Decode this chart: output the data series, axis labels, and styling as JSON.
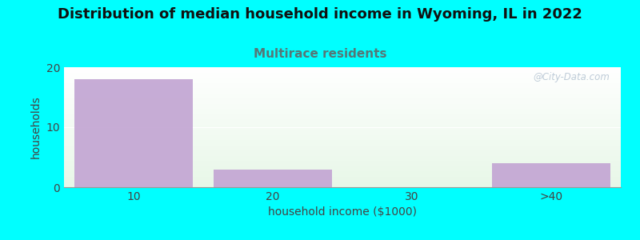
{
  "title": "Distribution of median household income in Wyoming, IL in 2022",
  "subtitle": "Multirace residents",
  "xlabel": "household income ($1000)",
  "ylabel": "households",
  "categories": [
    "10",
    "20",
    "30",
    ">40"
  ],
  "values": [
    18,
    3,
    0,
    4
  ],
  "bar_color": "#c4a8d4",
  "ylim": [
    0,
    20
  ],
  "yticks": [
    0,
    10,
    20
  ],
  "background_color": "#00ffff",
  "title_fontsize": 13,
  "subtitle_fontsize": 11,
  "subtitle_color": "#557777",
  "watermark": "@City-Data.com",
  "bar_width": 0.85
}
